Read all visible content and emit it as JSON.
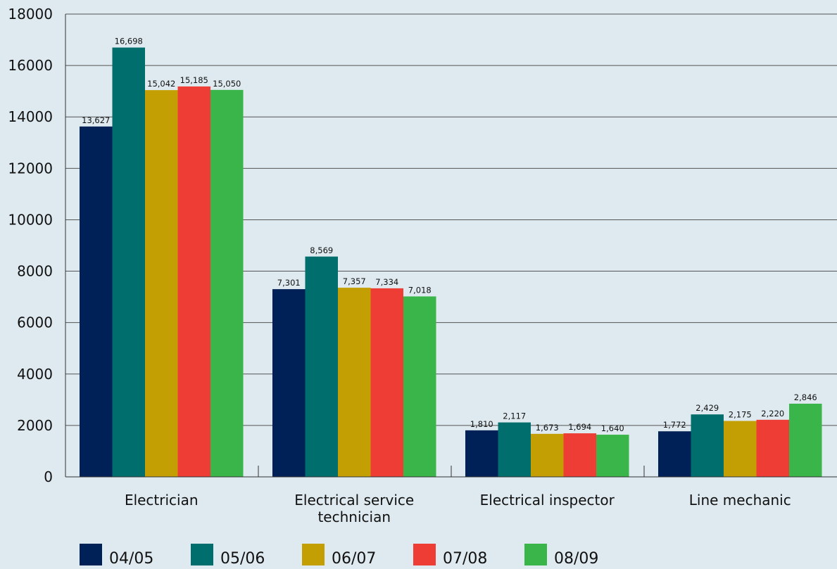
{
  "chart_data": {
    "type": "bar",
    "categories": [
      "Electrician",
      "Electrical service technician",
      "Electrical inspector",
      "Line mechanic"
    ],
    "category_label_lines": [
      [
        "Electrician"
      ],
      [
        "Electrical service",
        "technician"
      ],
      [
        "Electrical inspector"
      ],
      [
        "Line mechanic"
      ]
    ],
    "series": [
      {
        "name": "04/05",
        "color": "#002157",
        "values": [
          13627,
          7301,
          1810,
          1772
        ],
        "labels": [
          "13,627",
          "7,301",
          "1,810",
          "1,772"
        ]
      },
      {
        "name": "05/06",
        "color": "#006e6c",
        "values": [
          16698,
          8569,
          2117,
          2429
        ],
        "labels": [
          "16,698",
          "8,569",
          "2,117",
          "2,429"
        ]
      },
      {
        "name": "06/07",
        "color": "#c49f04",
        "values": [
          15042,
          7357,
          1673,
          2175
        ],
        "labels": [
          "15,042",
          "7,357",
          "1,673",
          "2,175"
        ]
      },
      {
        "name": "07/08",
        "color": "#ee3d35",
        "values": [
          15185,
          7334,
          1694,
          2220
        ],
        "labels": [
          "15,185",
          "7,334",
          "1,694",
          "2,220"
        ]
      },
      {
        "name": "08/09",
        "color": "#3ab54a",
        "values": [
          15050,
          7018,
          1640,
          2846
        ],
        "labels": [
          "15,050",
          "7,018",
          "1,640",
          "2,846"
        ]
      }
    ],
    "ylim": [
      0,
      18000
    ],
    "yticks": [
      0,
      2000,
      4000,
      6000,
      8000,
      10000,
      12000,
      14000,
      16000,
      18000
    ],
    "grid": true,
    "legend_position": "bottom",
    "title": "",
    "xlabel": "",
    "ylabel": ""
  }
}
